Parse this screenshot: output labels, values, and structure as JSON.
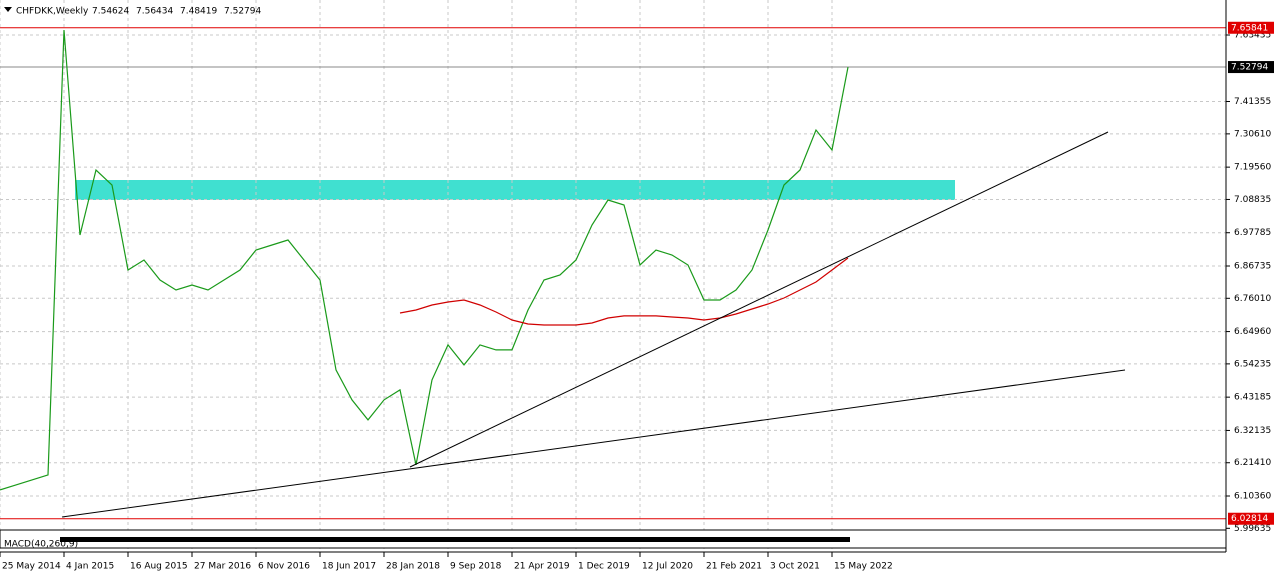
{
  "chart_data": {
    "type": "line",
    "symbol": "CHFDKK,Weekly",
    "ohlc": [
      7.54624,
      7.56434,
      7.48419,
      7.52794
    ],
    "indicator": "MACD(40,260,9)",
    "x": [
      "25 May 2014",
      "20 Jul 2014",
      "14 Sep 2014",
      "9 Nov 2014",
      "4 Jan 2015",
      "1 Mar 2015",
      "26 Apr 2015",
      "21 Jun 2015",
      "16 Aug 2015",
      "11 Oct 2015",
      "6 Dec 2015",
      "31 Jan 2016",
      "27 Mar 2016",
      "22 May 2016",
      "17 Jul 2016",
      "11 Sep 2016",
      "6 Nov 2016",
      "1 Jan 2017",
      "26 Feb 2017",
      "23 Apr 2017",
      "18 Jun 2017",
      "13 Aug 2017",
      "8 Oct 2017",
      "3 Dec 2017",
      "28 Jan 2018",
      "25 Mar 2018",
      "20 May 2018",
      "15 Jul 2018",
      "9 Sep 2018",
      "4 Nov 2018",
      "30 Dec 2018",
      "24 Feb 2019",
      "21 Apr 2019",
      "16 Jun 2019",
      "11 Aug 2019",
      "6 Oct 2019",
      "1 Dec 2019",
      "26 Jan 2020",
      "22 Mar 2020",
      "17 May 2020",
      "12 Jul 2020",
      "6 Sep 2020",
      "1 Nov 2020",
      "27 Dec 2020",
      "21 Feb 2021",
      "18 Apr 2021",
      "13 Jun 2021",
      "8 Aug 2021",
      "3 Oct 2021",
      "28 Nov 2021",
      "23 Jan 2022",
      "20 Mar 2022",
      "15 May 2022",
      "10 Jul 2022"
    ],
    "series": [
      {
        "color": "#1a9a1a",
        "values": [
          6.1238,
          6.1404,
          6.157,
          6.1736,
          7.651,
          6.9704,
          7.1862,
          7.1364,
          6.8542,
          6.8874,
          6.821,
          6.7878,
          6.8044,
          6.7878,
          6.821,
          6.8542,
          6.9206,
          6.9372,
          6.9538,
          6.8874,
          6.821,
          6.5222,
          6.4226,
          6.3562,
          6.4226,
          6.4558,
          6.2068,
          6.489,
          6.6052,
          6.5388,
          6.6052,
          6.5886,
          6.5886,
          6.7214,
          6.821,
          6.8376,
          6.8874,
          7.0036,
          7.0866,
          7.07,
          6.8708,
          6.9206,
          6.904,
          6.8708,
          6.7546,
          6.7546,
          6.7878,
          6.8542,
          6.987,
          7.1364,
          7.1862,
          7.319,
          7.2526,
          7.52794
        ]
      },
      {
        "color": "#d00000",
        "values": [
          null,
          null,
          null,
          null,
          null,
          null,
          null,
          null,
          null,
          null,
          null,
          null,
          null,
          null,
          null,
          null,
          null,
          null,
          null,
          null,
          null,
          null,
          null,
          null,
          null,
          6.7114,
          6.7214,
          6.738,
          6.7479,
          6.7546,
          6.738,
          6.7147,
          6.6882,
          6.6749,
          6.6716,
          6.6716,
          6.6716,
          6.6782,
          6.6948,
          6.7015,
          6.7015,
          6.7015,
          6.6981,
          6.6948,
          6.6882,
          6.6948,
          6.7081,
          6.7247,
          6.7413,
          6.7612,
          6.7878,
          6.8143,
          6.8542,
          6.894
        ]
      }
    ],
    "ylim": [
      6.0007,
      7.7506
    ],
    "yticks": [
      7.63435,
      7.41355,
      {
        "value": 7.3061,
        "label": "7.30610"
      },
      {
        "value": 7.1956,
        "label": "7.19560"
      },
      7.08835,
      6.97785,
      6.86735,
      {
        "value": 6.7601,
        "label": "6.76010"
      },
      {
        "value": 6.6496,
        "label": "6.64960"
      },
      6.54235,
      6.43185,
      6.32135,
      {
        "value": 6.2141,
        "label": "6.21410"
      },
      {
        "value": 6.1036,
        "label": "6.10360"
      },
      5.99635
    ],
    "xticks": [
      "25 May 2014",
      "4 Jan 2015",
      "16 Aug 2015",
      "27 Mar 2016",
      "6 Nov 2016",
      "18 Jun 2017",
      "28 Jan 2018",
      "9 Sep 2018",
      "21 Apr 2019",
      "1 Dec 2019",
      "12 Jul 2020",
      "21 Feb 2021",
      "3 Oct 2021",
      "15 May 2022"
    ],
    "levels": [
      {
        "value": 7.65841,
        "color": "#e00000"
      },
      {
        "value": 7.52794,
        "color": "#000000"
      },
      {
        "value": 6.02814,
        "color": "#e00000"
      }
    ],
    "grid": true
  }
}
